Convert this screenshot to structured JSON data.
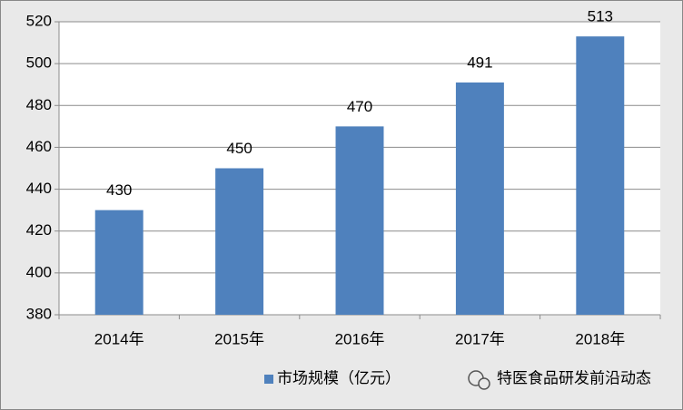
{
  "chart_data": {
    "type": "bar",
    "categories": [
      "2014年",
      "2015年",
      "2016年",
      "2017年",
      "2018年"
    ],
    "series": [
      {
        "name": "市场规模（亿元）",
        "color": "#4f81bd",
        "values": [
          430,
          450,
          470,
          491,
          513
        ]
      }
    ],
    "ylim": [
      380,
      520
    ],
    "yticks": [
      380,
      400,
      420,
      440,
      460,
      480,
      500,
      520
    ],
    "grid": true,
    "legend": "bottom",
    "data_labels": true,
    "watermark": "特医食品研发前沿动态"
  }
}
